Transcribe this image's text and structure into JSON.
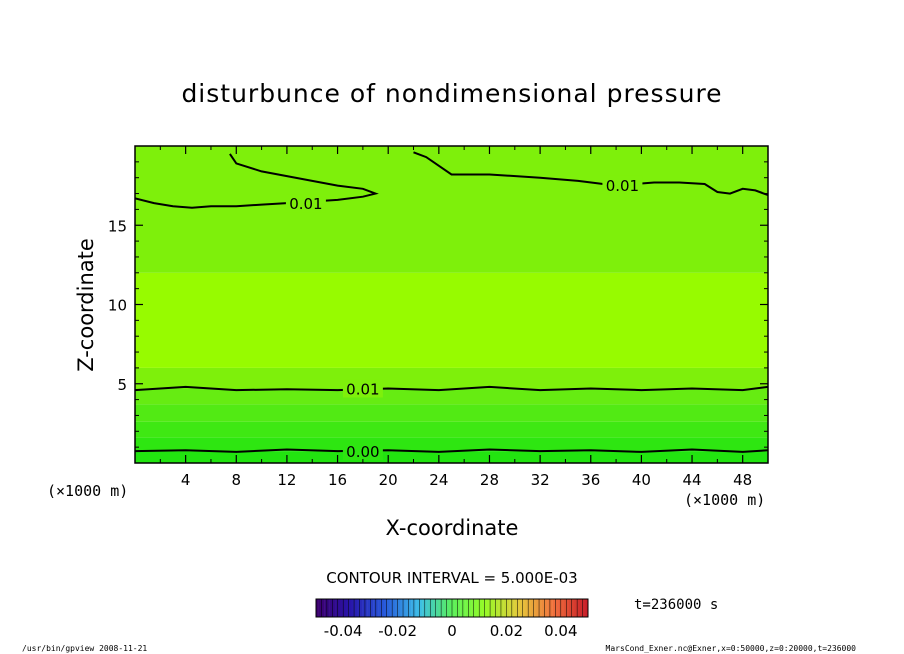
{
  "chart_data": {
    "type": "contour",
    "title": "disturbunce of nondimensional pressure",
    "xlabel": "X-coordinate",
    "ylabel": "Z-coordinate",
    "x_unit": "(×1000 m)",
    "y_unit": "(×1000 m)",
    "xlim": [
      0,
      50
    ],
    "ylim": [
      0,
      20
    ],
    "x_ticks": [
      4,
      8,
      12,
      16,
      20,
      24,
      28,
      32,
      36,
      40,
      44,
      48
    ],
    "y_ticks": [
      5,
      10,
      15
    ],
    "contour_interval": "CONTOUR INTERVAL = 5.000E-03",
    "contours": [
      {
        "label": "0.00",
        "level": 0.0,
        "x": [
          0,
          4,
          8,
          12,
          16,
          20,
          24,
          28,
          32,
          36,
          40,
          44,
          48,
          50
        ],
        "y": [
          0.75,
          0.8,
          0.7,
          0.85,
          0.75,
          0.8,
          0.7,
          0.85,
          0.75,
          0.8,
          0.7,
          0.85,
          0.7,
          0.8
        ]
      },
      {
        "label": "0.01",
        "level": 0.01,
        "x": [
          0,
          4,
          8,
          12,
          16,
          20,
          24,
          28,
          32,
          36,
          40,
          44,
          48,
          50
        ],
        "y": [
          4.6,
          4.8,
          4.6,
          4.65,
          4.6,
          4.7,
          4.6,
          4.8,
          4.6,
          4.7,
          4.6,
          4.7,
          4.6,
          4.8
        ]
      },
      {
        "label": "0.01",
        "level": 0.01,
        "x": [
          0,
          1.5,
          3,
          4.5,
          6,
          8,
          10,
          12,
          14,
          16,
          18,
          19,
          18,
          16,
          14,
          12,
          10,
          8,
          7.5
        ],
        "y": [
          16.7,
          16.4,
          16.2,
          16.1,
          16.2,
          16.2,
          16.3,
          16.4,
          16.5,
          16.6,
          16.8,
          17.0,
          17.3,
          17.5,
          17.8,
          18.1,
          18.4,
          18.9,
          19.5
        ]
      },
      {
        "label": "0.01",
        "level": 0.01,
        "x": [
          22,
          23,
          25,
          28,
          32,
          35,
          38,
          41,
          43,
          45,
          46,
          47,
          48,
          49,
          50
        ],
        "y": [
          19.6,
          19.3,
          18.2,
          18.2,
          18.0,
          17.8,
          17.5,
          17.7,
          17.7,
          17.6,
          17.1,
          17.0,
          17.3,
          17.2,
          16.9
        ]
      }
    ],
    "fill_bands": [
      {
        "from": 0,
        "to": 0.75,
        "color": "#22e410"
      },
      {
        "from": 0.75,
        "to": 1.6,
        "color": "#2ee611"
      },
      {
        "from": 1.6,
        "to": 2.6,
        "color": "#3fe813"
      },
      {
        "from": 2.6,
        "to": 3.7,
        "color": "#52ea14"
      },
      {
        "from": 3.7,
        "to": 4.7,
        "color": "#66ec12"
      },
      {
        "from": 4.7,
        "to": 6.0,
        "color": "#7ef00b"
      },
      {
        "from": 6.0,
        "to": 12.0,
        "color": "#97fb00"
      },
      {
        "from": 12.0,
        "to": 20.0,
        "color": "#7ef00b"
      }
    ],
    "colorbar": {
      "tick_labels": [
        "-0.04",
        "-0.02",
        "0",
        "0.02",
        "0.04"
      ],
      "tick_values": [
        -0.04,
        -0.02,
        0,
        0.02,
        0.04
      ],
      "min": -0.05,
      "max": 0.05
    },
    "time_label": "t=236000 s",
    "footer_left": "/usr/bin/gpview   2008-11-21",
    "footer_right": "MarsCond_Exner.nc@Exner,x=0:50000,z=0:20000,t=236000"
  }
}
